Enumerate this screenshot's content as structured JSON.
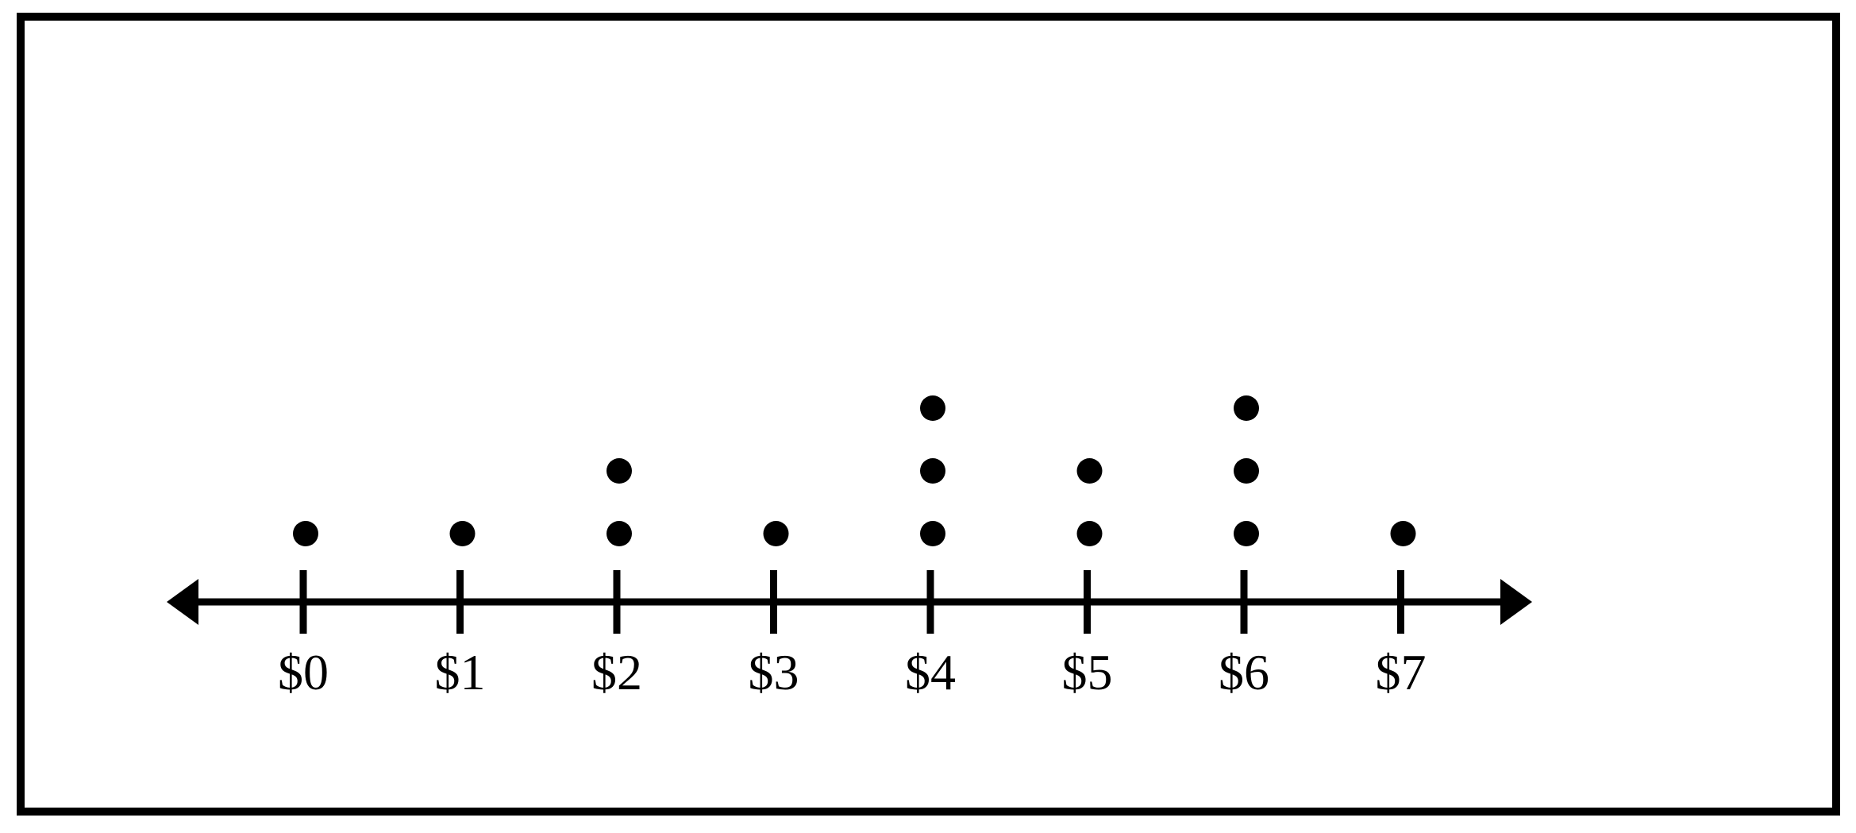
{
  "chart_data": {
    "type": "dot-plot",
    "title": "",
    "xlabel": "",
    "ylabel": "",
    "categories": [
      "$0",
      "$1",
      "$2",
      "$3",
      "$4",
      "$5",
      "$6",
      "$7"
    ],
    "x": [
      0,
      1,
      2,
      3,
      4,
      5,
      6,
      7
    ],
    "values": [
      1,
      1,
      2,
      1,
      3,
      2,
      3,
      1
    ],
    "xlim": [
      0,
      7
    ],
    "axis_arrows": "both ends",
    "grid": false,
    "legend": "none",
    "colors": {
      "ink": "#000000",
      "background": "#ffffff"
    }
  }
}
